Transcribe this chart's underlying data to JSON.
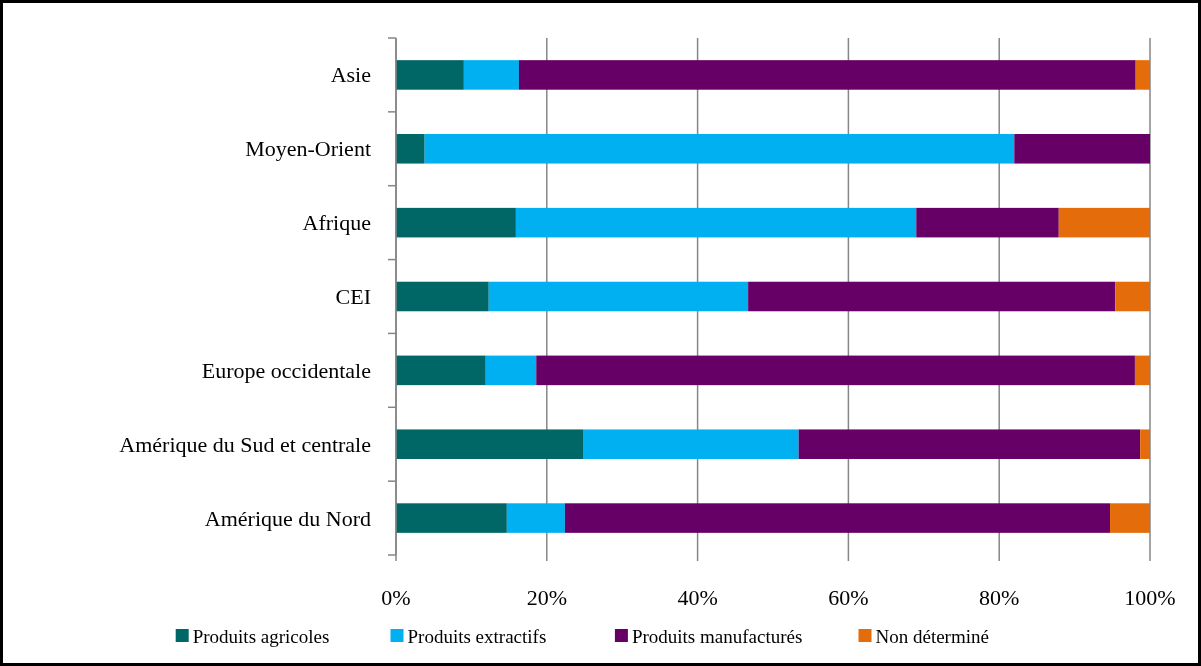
{
  "chart_data": {
    "type": "bar",
    "orientation": "horizontal",
    "stacked": true,
    "categories": [
      "Asie",
      "Moyen-Orient",
      "Afrique",
      "CEI",
      "Europe occidentale",
      "Amérique du Sud et  centrale",
      "Amérique du Nord"
    ],
    "series": [
      {
        "name": "Produits agricoles",
        "color": "#006666",
        "values": [
          9.0,
          3.8,
          15.9,
          12.3,
          11.9,
          24.8,
          14.7
        ]
      },
      {
        "name": "Produits extractifs",
        "color": "#00b0f0",
        "values": [
          7.3,
          78.2,
          53.1,
          34.4,
          6.7,
          28.6,
          7.7
        ]
      },
      {
        "name": "Produits manufacturés",
        "color": "#660066",
        "values": [
          81.8,
          18.0,
          18.9,
          48.7,
          79.4,
          45.3,
          72.3
        ]
      },
      {
        "name": "Non déterminé",
        "color": "#e46c0a",
        "values": [
          1.9,
          0,
          12.1,
          4.6,
          2.0,
          1.3,
          5.3
        ]
      }
    ],
    "xlim": [
      0,
      100
    ],
    "xticks": [
      {
        "value": 0,
        "label": "0%"
      },
      {
        "value": 20,
        "label": "20%"
      },
      {
        "value": 40,
        "label": "40%"
      },
      {
        "value": 60,
        "label": "60%"
      },
      {
        "value": 80,
        "label": "80%"
      },
      {
        "value": 100,
        "label": "100%"
      }
    ],
    "grid": "x",
    "legend": "bottom"
  }
}
